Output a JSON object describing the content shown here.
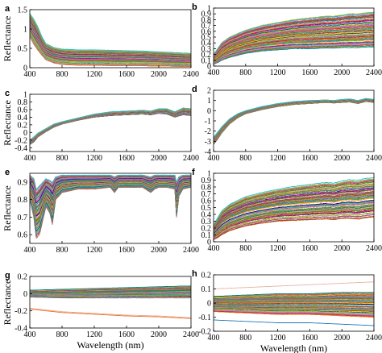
{
  "chart_data": [
    {
      "panel": "a",
      "type": "line",
      "ylabel": "Reflectance",
      "xlabel": "",
      "xlim": [
        400,
        2400
      ],
      "ylim": [
        0,
        1.5
      ],
      "xticks": [
        "400",
        "800",
        "1200",
        "1600",
        "2000",
        "2400"
      ],
      "yticks": [
        "0",
        "0.5",
        "1",
        "1.5"
      ],
      "yticks_values": [
        0,
        0.5,
        1,
        1.5
      ],
      "series_count": 70,
      "envelope": {
        "x": [
          400,
          450,
          500,
          550,
          600,
          700,
          800,
          1000,
          1200,
          1400,
          1600,
          1800,
          1900,
          2000,
          2100,
          2200,
          2300,
          2400
        ],
        "low": [
          0.8,
          0.6,
          0.45,
          0.32,
          0.2,
          0.12,
          0.08,
          0.06,
          0.06,
          0.05,
          0.05,
          0.05,
          0.04,
          0.04,
          0.04,
          0.03,
          0.03,
          0.03
        ],
        "high": [
          1.4,
          1.25,
          1.05,
          0.8,
          0.62,
          0.52,
          0.48,
          0.46,
          0.46,
          0.45,
          0.44,
          0.43,
          0.42,
          0.41,
          0.4,
          0.39,
          0.38,
          0.37
        ]
      }
    },
    {
      "panel": "b",
      "type": "line",
      "ylabel": "",
      "xlabel": "",
      "xlim": [
        400,
        2400
      ],
      "ylim": [
        0,
        1
      ],
      "xticks": [
        "400",
        "800",
        "1200",
        "1600",
        "2000",
        "2400"
      ],
      "yticks": [
        "0",
        "0.1",
        "0.2",
        "0.3",
        "0.4",
        "0.5",
        "0.6",
        "0.7",
        "0.8",
        "0.9",
        "1"
      ],
      "yticks_values": [
        0,
        0.1,
        0.2,
        0.3,
        0.4,
        0.5,
        0.6,
        0.7,
        0.8,
        0.9,
        1
      ],
      "series_count": 70,
      "envelope": {
        "x": [
          400,
          450,
          500,
          600,
          800,
          1000,
          1200,
          1400,
          1600,
          1800,
          1900,
          2000,
          2100,
          2200,
          2300,
          2400
        ],
        "low": [
          0.03,
          0.06,
          0.1,
          0.15,
          0.22,
          0.26,
          0.28,
          0.3,
          0.3,
          0.31,
          0.31,
          0.32,
          0.32,
          0.32,
          0.33,
          0.33
        ],
        "high": [
          0.2,
          0.3,
          0.4,
          0.5,
          0.62,
          0.7,
          0.75,
          0.8,
          0.83,
          0.86,
          0.86,
          0.88,
          0.9,
          0.9,
          0.92,
          0.93
        ]
      }
    },
    {
      "panel": "c",
      "type": "line",
      "ylabel": "Reflectance",
      "xlabel": "",
      "xlim": [
        400,
        2400
      ],
      "ylim": [
        -0.5,
        1
      ],
      "xticks": [
        "400",
        "800",
        "1200",
        "1600",
        "2000",
        "2400"
      ],
      "yticks": [
        "-0.4",
        "-0.2",
        "0",
        "0.2",
        "0.4",
        "0.6",
        "0.8",
        "1"
      ],
      "yticks_values": [
        -0.4,
        -0.2,
        0,
        0.2,
        0.4,
        0.6,
        0.8,
        1
      ],
      "series_count": 70,
      "envelope": {
        "x": [
          400,
          450,
          500,
          600,
          700,
          800,
          1000,
          1200,
          1400,
          1600,
          1800,
          1900,
          2000,
          2100,
          2200,
          2300,
          2400
        ],
        "low": [
          -0.32,
          -0.25,
          -0.12,
          0.02,
          0.14,
          0.22,
          0.32,
          0.4,
          0.44,
          0.46,
          0.48,
          0.46,
          0.5,
          0.48,
          0.4,
          0.46,
          0.44
        ],
        "high": [
          -0.2,
          -0.12,
          -0.02,
          0.1,
          0.22,
          0.28,
          0.38,
          0.48,
          0.54,
          0.56,
          0.58,
          0.56,
          0.62,
          0.62,
          0.54,
          0.64,
          0.62
        ]
      }
    },
    {
      "panel": "d",
      "type": "line",
      "ylabel": "",
      "xlabel": "",
      "xlim": [
        400,
        2400
      ],
      "ylim": [
        -4,
        2
      ],
      "xticks": [
        "400",
        "800",
        "1200",
        "1600",
        "2000",
        "2400"
      ],
      "yticks": [
        "-4",
        "-3",
        "-2",
        "-1",
        "0",
        "1",
        "2"
      ],
      "yticks_values": [
        -4,
        -3,
        -2,
        -1,
        0,
        1,
        2
      ],
      "series_count": 70,
      "envelope": {
        "x": [
          400,
          450,
          500,
          600,
          700,
          800,
          1000,
          1200,
          1400,
          1600,
          1800,
          1900,
          2000,
          2100,
          2200,
          2300,
          2400
        ],
        "low": [
          -3.3,
          -2.8,
          -2.2,
          -1.3,
          -0.7,
          -0.3,
          0.1,
          0.4,
          0.6,
          0.7,
          0.8,
          0.75,
          0.8,
          0.85,
          0.7,
          0.9,
          0.8
        ],
        "high": [
          -2.6,
          -2.1,
          -1.6,
          -0.8,
          -0.3,
          0.0,
          0.4,
          0.7,
          0.9,
          1.0,
          1.05,
          1.0,
          1.1,
          1.15,
          1.0,
          1.2,
          1.1
        ]
      }
    },
    {
      "panel": "e",
      "type": "line",
      "ylabel": "Reflectance",
      "xlabel": "",
      "xlim": [
        400,
        2400
      ],
      "ylim": [
        0.55,
        0.95
      ],
      "xticks": [
        "400",
        "800",
        "1200",
        "1600",
        "2000",
        "2400"
      ],
      "yticks": [
        "0.6",
        "0.7",
        "0.8",
        "0.9"
      ],
      "yticks_values": [
        0.6,
        0.7,
        0.8,
        0.9
      ],
      "series_count": 70,
      "envelope": {
        "x": [
          400,
          450,
          480,
          520,
          560,
          600,
          650,
          680,
          720,
          800,
          1000,
          1200,
          1400,
          1450,
          1500,
          1600,
          1800,
          1900,
          1950,
          2000,
          2100,
          2200,
          2220,
          2250,
          2300,
          2400
        ],
        "low": [
          0.8,
          0.7,
          0.58,
          0.6,
          0.68,
          0.76,
          0.72,
          0.66,
          0.8,
          0.84,
          0.86,
          0.86,
          0.87,
          0.84,
          0.87,
          0.87,
          0.87,
          0.84,
          0.86,
          0.87,
          0.87,
          0.86,
          0.7,
          0.82,
          0.86,
          0.87
        ],
        "high": [
          0.94,
          0.92,
          0.86,
          0.88,
          0.9,
          0.92,
          0.91,
          0.9,
          0.93,
          0.94,
          0.94,
          0.94,
          0.94,
          0.93,
          0.94,
          0.94,
          0.94,
          0.93,
          0.94,
          0.94,
          0.94,
          0.94,
          0.9,
          0.93,
          0.94,
          0.94
        ]
      }
    },
    {
      "panel": "f",
      "type": "line",
      "ylabel": "",
      "xlabel": "",
      "xlim": [
        400,
        2400
      ],
      "ylim": [
        0,
        1
      ],
      "xticks": [
        "400",
        "800",
        "1200",
        "1600",
        "2000",
        "2400"
      ],
      "yticks": [
        "0",
        "0.1",
        "0.2",
        "0.3",
        "0.4",
        "0.5",
        "0.6",
        "0.7",
        "0.8",
        "0.9",
        "1"
      ],
      "yticks_values": [
        0,
        0.1,
        0.2,
        0.3,
        0.4,
        0.5,
        0.6,
        0.7,
        0.8,
        0.9,
        1
      ],
      "series_count": 70,
      "envelope": {
        "x": [
          400,
          450,
          500,
          600,
          800,
          1000,
          1200,
          1400,
          1600,
          1800,
          1900,
          2000,
          2100,
          2200,
          2300,
          2400
        ],
        "low": [
          0.03,
          0.06,
          0.1,
          0.16,
          0.23,
          0.27,
          0.3,
          0.31,
          0.32,
          0.33,
          0.32,
          0.34,
          0.34,
          0.33,
          0.35,
          0.36
        ],
        "high": [
          0.25,
          0.35,
          0.45,
          0.55,
          0.66,
          0.72,
          0.77,
          0.81,
          0.84,
          0.87,
          0.86,
          0.89,
          0.91,
          0.9,
          0.93,
          0.94
        ]
      }
    },
    {
      "panel": "g",
      "type": "line",
      "ylabel": "Reflectance",
      "xlabel": "Wavelength (nm)",
      "xlim": [
        400,
        2400
      ],
      "ylim": [
        -0.4,
        0.2
      ],
      "xticks": [
        "400",
        "800",
        "1200",
        "1600",
        "2000",
        "2400"
      ],
      "yticks": [
        "-0.4",
        "-0.2",
        "0",
        "0.2"
      ],
      "yticks_values": [
        -0.4,
        -0.2,
        0,
        0.2
      ],
      "series_count": 60,
      "envelope": {
        "x": [
          400,
          800,
          1200,
          1600,
          2000,
          2400
        ],
        "low": [
          -0.04,
          -0.05,
          -0.05,
          -0.05,
          -0.05,
          -0.05
        ],
        "high": [
          0.04,
          0.05,
          0.06,
          0.07,
          0.08,
          0.09
        ]
      },
      "outliers": [
        {
          "color": "#f4a582",
          "x": [
            400,
            800,
            1200,
            1600,
            2000,
            2400
          ],
          "y": [
            -0.17,
            -0.21,
            -0.23,
            -0.25,
            -0.26,
            -0.28
          ]
        },
        {
          "color": "#e07b39",
          "x": [
            400,
            800,
            1200,
            1600,
            2000,
            2400
          ],
          "y": [
            -0.18,
            -0.22,
            -0.24,
            -0.26,
            -0.27,
            -0.29
          ]
        }
      ]
    },
    {
      "panel": "h",
      "type": "line",
      "ylabel": "",
      "xlabel": "Wavelength (nm)",
      "xlim": [
        400,
        2400
      ],
      "ylim": [
        -0.2,
        0.2
      ],
      "xticks": [
        "400",
        "800",
        "1200",
        "1600",
        "2000",
        "2400"
      ],
      "yticks": [
        "-0.2",
        "-0.1",
        "0",
        "0.1",
        "0.2"
      ],
      "yticks_values": [
        -0.2,
        -0.1,
        0,
        0.1,
        0.2
      ],
      "series_count": 60,
      "envelope": {
        "x": [
          400,
          800,
          1200,
          1600,
          2000,
          2400
        ],
        "low": [
          -0.06,
          -0.07,
          -0.08,
          -0.08,
          -0.09,
          -0.1
        ],
        "high": [
          0.05,
          0.06,
          0.07,
          0.07,
          0.08,
          0.08
        ]
      },
      "outliers": [
        {
          "color": "#e8b4a0",
          "x": [
            400,
            800,
            1200,
            1600,
            2000,
            2400
          ],
          "y": [
            0.1,
            0.11,
            0.12,
            0.13,
            0.14,
            0.15
          ]
        },
        {
          "color": "#1f77b4",
          "x": [
            400,
            800,
            1200,
            1600,
            2000,
            2400
          ],
          "y": [
            -0.12,
            -0.13,
            -0.14,
            -0.14,
            -0.15,
            -0.16
          ]
        }
      ]
    }
  ],
  "palette": [
    "#1f77b4",
    "#ff7f0e",
    "#2ca02c",
    "#d62728",
    "#9467bd",
    "#8c564b",
    "#e377c2",
    "#7f7f7f",
    "#bcbd22",
    "#17becf",
    "#2f4f2f",
    "#4b0082",
    "#ff1493",
    "#ffd700",
    "#00ced1",
    "#a0522d",
    "#6b8e23",
    "#708090",
    "#f4a460",
    "#008080"
  ]
}
